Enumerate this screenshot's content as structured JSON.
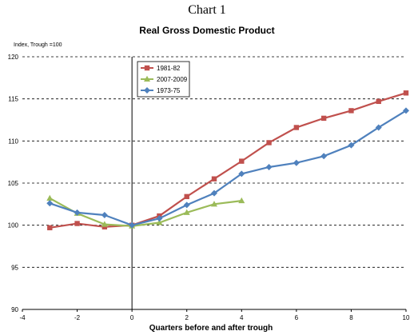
{
  "heading": "Chart 1",
  "chart_data": {
    "type": "line",
    "title": "Real Gross Domestic Product",
    "ylabel": "Index, Trough =100",
    "xlabel": "Quarters before and after trough",
    "xlim": [
      -4,
      10
    ],
    "ylim": [
      90,
      120
    ],
    "xticks": [
      -4,
      -2,
      0,
      2,
      4,
      6,
      8,
      10
    ],
    "yticks": [
      90,
      95,
      100,
      105,
      110,
      115,
      120
    ],
    "grid": "horizontal dashed",
    "legend_position": "top-left, inside plot",
    "series": [
      {
        "name": "1981-82",
        "color": "#c0504d",
        "marker": "square",
        "x": [
          -3,
          -2,
          -1,
          0,
          1,
          2,
          3,
          4,
          5,
          6,
          7,
          8,
          9,
          10
        ],
        "y": [
          99.7,
          100.2,
          99.8,
          100.0,
          101.1,
          103.4,
          105.5,
          107.6,
          109.8,
          111.6,
          112.7,
          113.6,
          114.7,
          115.7
        ]
      },
      {
        "name": "2007-2009",
        "color": "#9bbb59",
        "marker": "triangle",
        "x": [
          -3,
          -2,
          -1,
          0,
          1,
          2,
          3,
          4
        ],
        "y": [
          103.2,
          101.4,
          100.1,
          99.9,
          100.3,
          101.5,
          102.5,
          102.9
        ]
      },
      {
        "name": "1973-75",
        "color": "#4f81bd",
        "marker": "diamond",
        "x": [
          -3,
          -2,
          -1,
          0,
          1,
          2,
          3,
          4,
          5,
          6,
          7,
          8,
          9,
          10
        ],
        "y": [
          102.6,
          101.5,
          101.2,
          100.0,
          100.8,
          102.4,
          103.8,
          106.1,
          106.9,
          107.4,
          108.2,
          109.5,
          111.6,
          113.6
        ]
      }
    ]
  }
}
